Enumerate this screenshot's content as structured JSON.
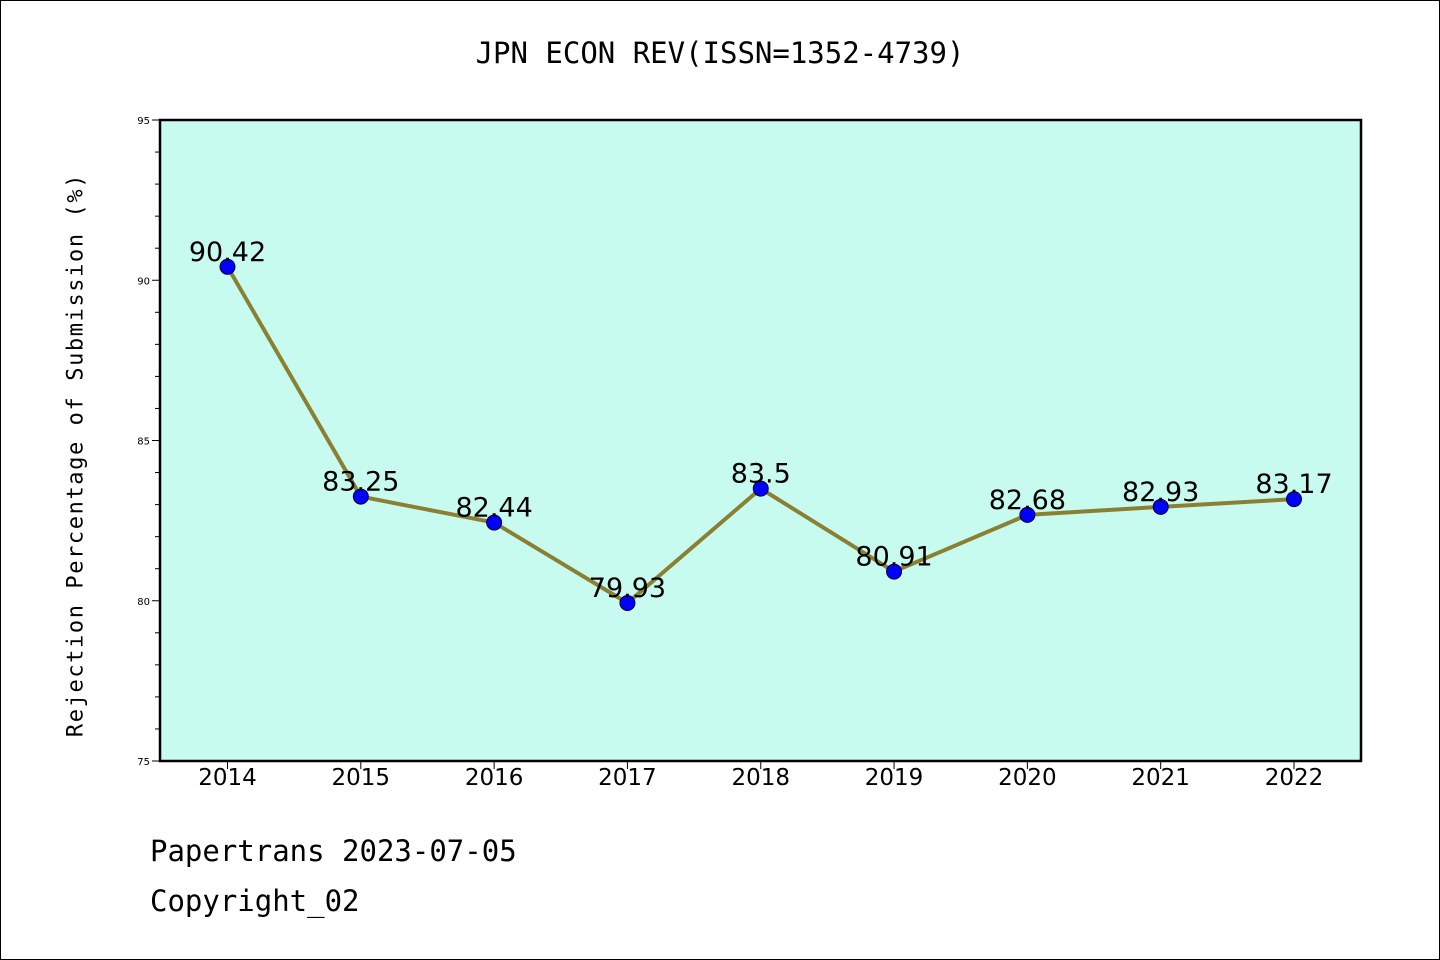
{
  "chart_data": {
    "type": "line",
    "title": "JPN ECON REV(ISSN=1352-4739)",
    "xlabel": "",
    "ylabel": "Rejection Percentage of Submission (%)",
    "categories": [
      "2014",
      "2015",
      "2016",
      "2017",
      "2018",
      "2019",
      "2020",
      "2021",
      "2022"
    ],
    "series": [
      {
        "values": [
          90.42,
          83.25,
          82.44,
          79.93,
          83.5,
          80.91,
          82.68,
          82.93,
          83.17
        ],
        "labels": [
          "90.42",
          "83.25",
          "82.44",
          "79.93",
          "83.5",
          "80.91",
          "82.68",
          "82.93",
          "83.17"
        ]
      }
    ],
    "ylim": [
      75,
      95
    ],
    "yticks": [
      "75",
      "80",
      "85",
      "90",
      "95"
    ],
    "grid": false,
    "colors": {
      "plot_background": "#c8fbef",
      "line": "#8b8032",
      "marker": "#0000ff"
    }
  },
  "footer": {
    "line1": "Papertrans 2023-07-05",
    "line2": "Copyright_02"
  }
}
